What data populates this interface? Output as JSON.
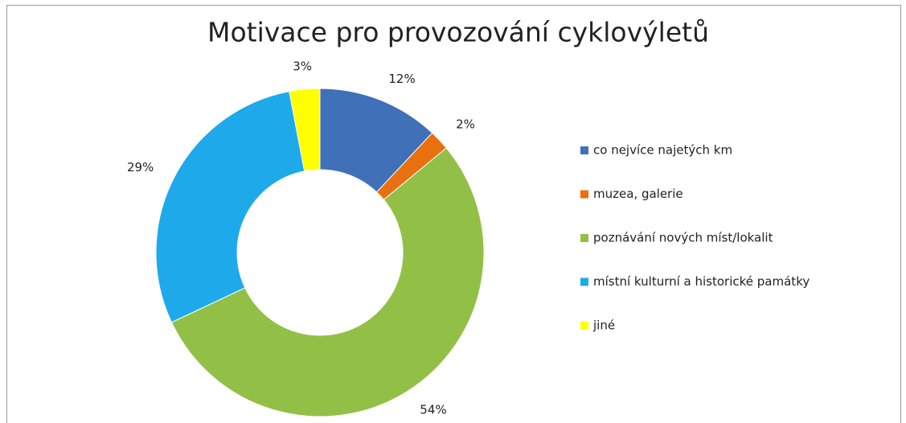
{
  "chart_data": {
    "type": "donut",
    "title": "Motivace pro provozování cyklovýletů",
    "categories": [
      "co nejvíce najetých km",
      "muzea, galerie",
      "poznávání nových  míst/lokalit",
      "místní kulturní a historické památky",
      "jiné"
    ],
    "values": [
      12,
      2,
      54,
      29,
      3
    ],
    "value_labels": [
      "12%",
      "2%",
      "54%",
      "29%",
      "3%"
    ],
    "colors": [
      "#3f70b8",
      "#e8700f",
      "#92c047",
      "#1eaaea",
      "#ffff00"
    ],
    "legend": "right"
  }
}
